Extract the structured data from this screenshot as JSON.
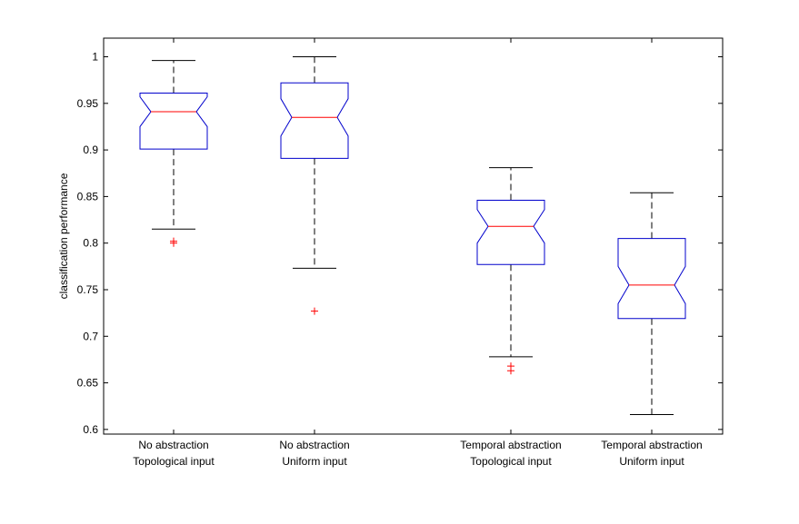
{
  "chart_data": {
    "type": "boxplot",
    "notched": true,
    "ylabel": "classification performance",
    "ylim": [
      0.595,
      1.02
    ],
    "yticks": [
      0.6,
      0.65,
      0.7,
      0.75,
      0.8,
      0.85,
      0.9,
      0.95,
      1
    ],
    "ytick_labels": [
      "0.6",
      "0.65",
      "0.7",
      "0.75",
      "0.8",
      "0.85",
      "0.9",
      "0.95",
      "1"
    ],
    "grid": false,
    "colors": {
      "box": "#0000cc",
      "median": "#ff0000",
      "whisker": "#000000",
      "outlier": "#ff0000"
    },
    "boxes": [
      {
        "category_lines": [
          "No abstraction",
          "Topological input"
        ],
        "min": 0.815,
        "q1": 0.901,
        "median": 0.941,
        "q3": 0.961,
        "max": 0.996,
        "notch_low": 0.925,
        "notch_high": 0.957,
        "outliers": [
          0.8,
          0.802
        ]
      },
      {
        "category_lines": [
          "No abstraction",
          "Uniform input"
        ],
        "min": 0.773,
        "q1": 0.891,
        "median": 0.935,
        "q3": 0.972,
        "max": 1.0,
        "notch_low": 0.915,
        "notch_high": 0.955,
        "outliers": [
          0.727
        ]
      },
      {
        "category_lines": [
          "Temporal abstraction",
          "Topological input"
        ],
        "min": 0.678,
        "q1": 0.777,
        "median": 0.818,
        "q3": 0.846,
        "max": 0.881,
        "notch_low": 0.8,
        "notch_high": 0.836,
        "outliers": [
          0.663,
          0.668
        ]
      },
      {
        "category_lines": [
          "Temporal abstraction",
          "Uniform input"
        ],
        "min": 0.616,
        "q1": 0.719,
        "median": 0.755,
        "q3": 0.805,
        "max": 0.854,
        "notch_low": 0.735,
        "notch_high": 0.775,
        "outliers": []
      }
    ]
  }
}
